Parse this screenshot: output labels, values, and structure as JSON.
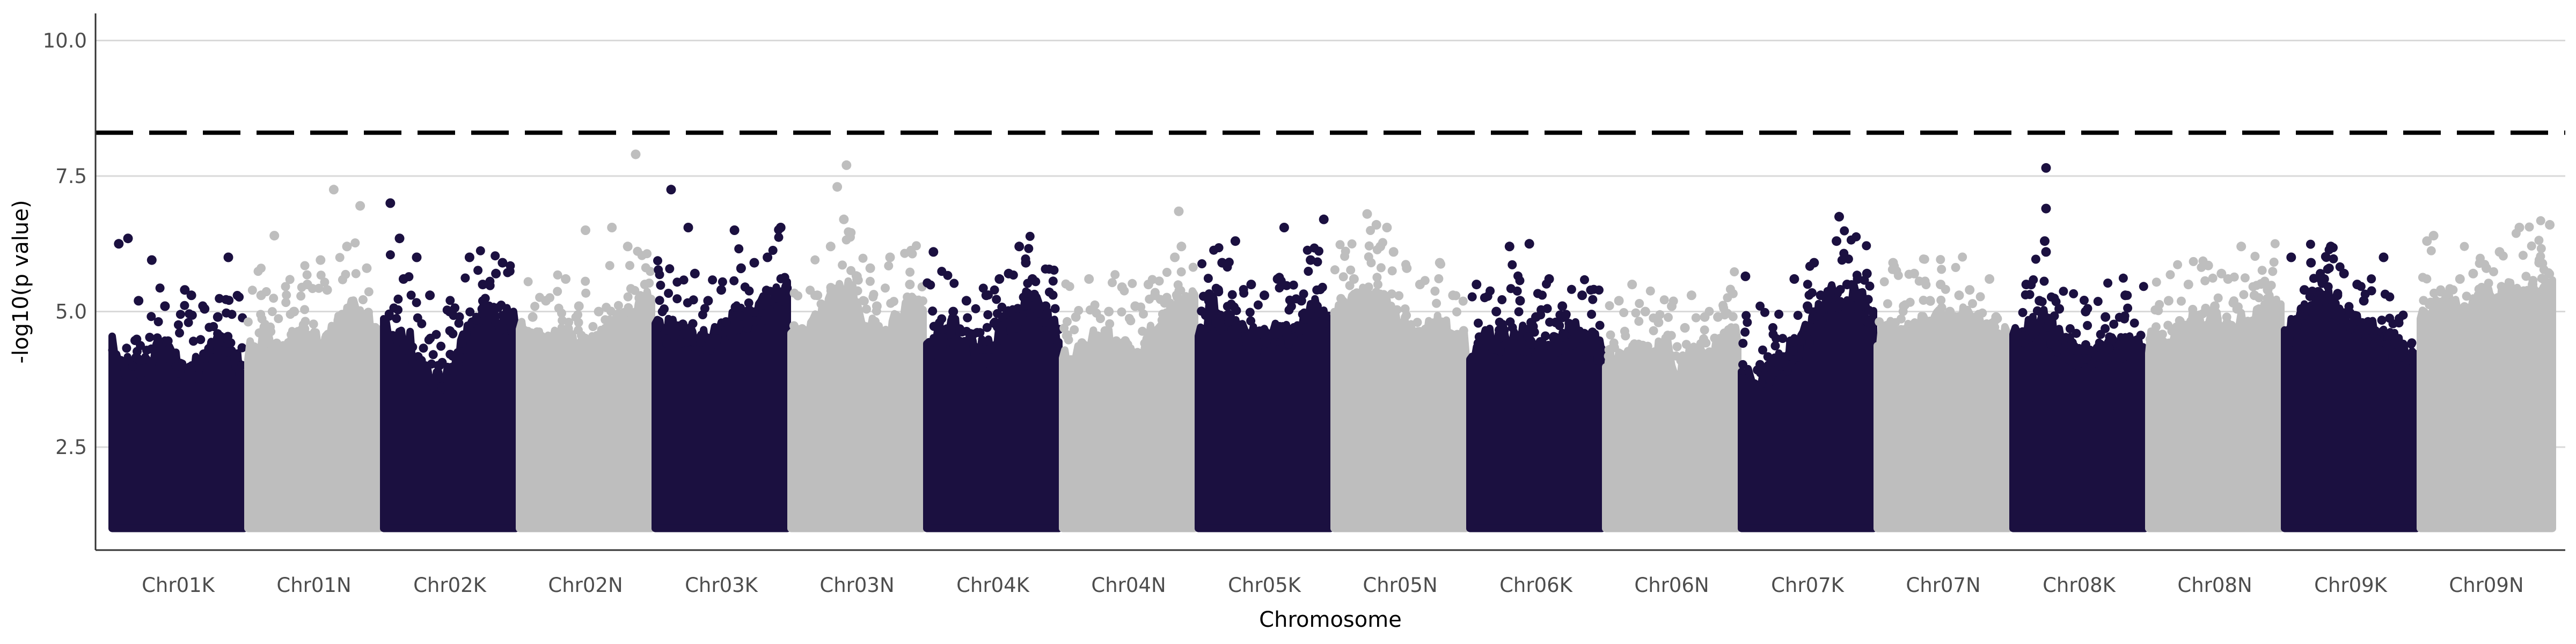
{
  "chart_data": {
    "type": "scatter",
    "subtype": "manhattan",
    "title": "",
    "xlabel": "Chromosome",
    "ylabel": "-log10(p value)",
    "ylim": [
      0.6,
      10.5
    ],
    "y_ticks": [
      2.5,
      5.0,
      7.5,
      10.0
    ],
    "y_tick_labels": [
      "2.5",
      "5.0",
      "7.5",
      "10.0"
    ],
    "grid": "horizontal-major",
    "legend": "none",
    "threshold": 8.3,
    "colors": {
      "odd": "#1b1040",
      "even": "#bebebe",
      "threshold": "#000000"
    },
    "point_floor": 1.0,
    "categories": [
      "Chr01K",
      "Chr01N",
      "Chr02K",
      "Chr02N",
      "Chr03K",
      "Chr03N",
      "Chr04K",
      "Chr04N",
      "Chr05K",
      "Chr05N",
      "Chr06K",
      "Chr06N",
      "Chr07K",
      "Chr07N",
      "Chr08K",
      "Chr08N",
      "Chr09K",
      "Chr09N"
    ],
    "series": [
      {
        "category": "Chr01K",
        "bulk_top": [
          4.3,
          3.9,
          4.0,
          4.4,
          4.1,
          3.8,
          4.0,
          4.5,
          4.2,
          3.9
        ],
        "points": [
          [
            0.05,
            6.25
          ],
          [
            0.12,
            6.35
          ],
          [
            0.3,
            5.95
          ],
          [
            0.55,
            5.4
          ],
          [
            0.7,
            5.05
          ],
          [
            0.88,
            6.0
          ],
          [
            0.4,
            5.1
          ],
          [
            0.6,
            5.3
          ],
          [
            0.2,
            5.2
          ],
          [
            0.8,
            4.9
          ]
        ]
      },
      {
        "category": "Chr01N",
        "bulk_top": [
          4.3,
          4.6,
          4.2,
          4.5,
          4.7,
          4.4,
          4.6,
          5.1,
          4.8,
          4.6
        ],
        "points": [
          [
            0.2,
            6.4
          ],
          [
            0.65,
            7.25
          ],
          [
            0.85,
            6.95
          ],
          [
            0.55,
            5.95
          ],
          [
            0.75,
            6.2
          ],
          [
            0.45,
            5.5
          ],
          [
            0.9,
            5.8
          ],
          [
            0.1,
            5.3
          ],
          [
            0.35,
            5.0
          ],
          [
            0.6,
            5.4
          ]
        ]
      },
      {
        "category": "Chr02K",
        "bulk_top": [
          4.9,
          4.7,
          4.3,
          3.8,
          3.6,
          4.2,
          4.7,
          5.0,
          4.9,
          4.8
        ],
        "points": [
          [
            0.05,
            7.0
          ],
          [
            0.12,
            6.35
          ],
          [
            0.25,
            6.0
          ],
          [
            0.65,
            6.0
          ],
          [
            0.9,
            5.9
          ],
          [
            0.15,
            5.6
          ],
          [
            0.5,
            5.0
          ],
          [
            0.75,
            5.5
          ],
          [
            0.35,
            5.3
          ],
          [
            0.85,
            5.7
          ]
        ]
      },
      {
        "category": "Chr02N",
        "bulk_top": [
          4.6,
          4.4,
          4.3,
          4.5,
          4.2,
          4.4,
          4.6,
          4.8,
          5.0,
          5.2
        ],
        "points": [
          [
            0.5,
            6.5
          ],
          [
            0.88,
            7.9
          ],
          [
            0.82,
            6.2
          ],
          [
            0.35,
            5.6
          ],
          [
            0.7,
            6.55
          ],
          [
            0.2,
            5.2
          ],
          [
            0.95,
            5.5
          ],
          [
            0.6,
            5.0
          ],
          [
            0.1,
            4.9
          ],
          [
            0.45,
            5.1
          ]
        ]
      },
      {
        "category": "Chr03K",
        "bulk_top": [
          4.7,
          4.6,
          4.5,
          4.4,
          4.6,
          4.8,
          4.9,
          5.0,
          5.2,
          5.4
        ],
        "points": [
          [
            0.12,
            7.25
          ],
          [
            0.25,
            6.55
          ],
          [
            0.6,
            6.5
          ],
          [
            0.95,
            6.55
          ],
          [
            0.3,
            5.7
          ],
          [
            0.75,
            5.9
          ],
          [
            0.85,
            6.0
          ],
          [
            0.5,
            5.4
          ],
          [
            0.65,
            5.8
          ],
          [
            0.4,
            5.2
          ]
        ]
      },
      {
        "category": "Chr03N",
        "bulk_top": [
          4.4,
          4.5,
          4.8,
          5.2,
          5.4,
          4.8,
          4.5,
          4.7,
          5.0,
          5.2
        ],
        "points": [
          [
            0.35,
            7.3
          ],
          [
            0.42,
            7.7
          ],
          [
            0.4,
            6.7
          ],
          [
            0.3,
            6.2
          ],
          [
            0.6,
            5.8
          ],
          [
            0.75,
            6.0
          ],
          [
            0.2,
            5.3
          ],
          [
            0.9,
            5.5
          ],
          [
            0.5,
            5.6
          ],
          [
            0.65,
            5.1
          ]
        ]
      },
      {
        "category": "Chr04K",
        "bulk_top": [
          4.3,
          4.5,
          4.6,
          4.4,
          4.2,
          4.7,
          4.9,
          5.2,
          4.8,
          4.6
        ],
        "points": [
          [
            0.05,
            6.1
          ],
          [
            0.3,
            5.2
          ],
          [
            0.55,
            5.6
          ],
          [
            0.7,
            6.2
          ],
          [
            0.75,
            5.9
          ],
          [
            0.8,
            5.6
          ],
          [
            0.2,
            5.0
          ],
          [
            0.45,
            5.3
          ],
          [
            0.62,
            5.7
          ],
          [
            0.9,
            5.1
          ]
        ]
      },
      {
        "category": "Chr04N",
        "bulk_top": [
          4.3,
          4.1,
          4.4,
          4.5,
          4.3,
          4.2,
          4.5,
          4.8,
          5.1,
          5.3
        ],
        "points": [
          [
            0.2,
            5.6
          ],
          [
            0.45,
            5.45
          ],
          [
            0.65,
            5.5
          ],
          [
            0.85,
            6.0
          ],
          [
            0.88,
            6.85
          ],
          [
            0.9,
            6.2
          ],
          [
            0.35,
            5.0
          ],
          [
            0.55,
            5.1
          ],
          [
            0.7,
            5.3
          ],
          [
            0.1,
            4.9
          ]
        ]
      },
      {
        "category": "Chr05K",
        "bulk_top": [
          4.8,
          5.0,
          4.8,
          4.6,
          4.4,
          4.5,
          4.6,
          4.8,
          5.0,
          4.9
        ],
        "points": [
          [
            0.18,
            5.9
          ],
          [
            0.28,
            6.3
          ],
          [
            0.4,
            5.5
          ],
          [
            0.6,
            5.6
          ],
          [
            0.65,
            6.55
          ],
          [
            0.85,
            5.95
          ],
          [
            0.95,
            6.7
          ],
          [
            0.78,
            5.2
          ],
          [
            0.5,
            5.3
          ],
          [
            0.15,
            5.4
          ]
        ]
      },
      {
        "category": "Chr05N",
        "bulk_top": [
          4.9,
          5.0,
          5.4,
          5.2,
          4.8,
          4.6,
          4.5,
          4.7,
          4.5,
          4.4
        ],
        "points": [
          [
            0.25,
            6.8
          ],
          [
            0.32,
            6.6
          ],
          [
            0.4,
            6.55
          ],
          [
            0.35,
            6.2
          ],
          [
            0.45,
            6.1
          ],
          [
            0.55,
            5.8
          ],
          [
            0.8,
            5.9
          ],
          [
            0.15,
            5.6
          ],
          [
            0.65,
            5.5
          ],
          [
            0.9,
            5.3
          ]
        ]
      },
      {
        "category": "Chr06K",
        "bulk_top": [
          4.3,
          4.4,
          4.5,
          4.6,
          4.4,
          4.3,
          4.5,
          4.6,
          4.4,
          4.3
        ],
        "points": [
          [
            0.05,
            5.5
          ],
          [
            0.3,
            6.2
          ],
          [
            0.45,
            6.25
          ],
          [
            0.6,
            5.6
          ],
          [
            0.7,
            5.1
          ],
          [
            0.85,
            5.3
          ],
          [
            0.2,
            5.0
          ],
          [
            0.5,
            4.9
          ],
          [
            0.38,
            5.2
          ],
          [
            0.65,
            4.8
          ]
        ]
      },
      {
        "category": "Chr06N",
        "bulk_top": [
          4.1,
          4.0,
          4.2,
          4.1,
          4.3,
          4.0,
          4.1,
          4.2,
          4.4,
          4.5
        ],
        "points": [
          [
            0.2,
            5.5
          ],
          [
            0.3,
            5.0
          ],
          [
            0.5,
            5.1
          ],
          [
            0.65,
            5.3
          ],
          [
            0.75,
            4.9
          ],
          [
            0.9,
            4.6
          ],
          [
            0.1,
            5.2
          ],
          [
            0.4,
            4.8
          ],
          [
            0.6,
            4.7
          ],
          [
            0.85,
            4.9
          ]
        ]
      },
      {
        "category": "Chr07K",
        "bulk_top": [
          3.7,
          3.8,
          3.9,
          4.1,
          4.4,
          4.8,
          5.2,
          5.4,
          5.2,
          4.9
        ],
        "points": [
          [
            0.03,
            5.65
          ],
          [
            0.4,
            5.6
          ],
          [
            0.55,
            5.9
          ],
          [
            0.72,
            6.3
          ],
          [
            0.74,
            6.75
          ],
          [
            0.8,
            5.5
          ],
          [
            0.95,
            5.7
          ],
          [
            0.6,
            5.3
          ],
          [
            0.88,
            5.6
          ],
          [
            0.5,
            5.1
          ]
        ]
      },
      {
        "category": "Chr07N",
        "bulk_top": [
          4.4,
          4.6,
          4.5,
          4.7,
          4.8,
          4.6,
          4.9,
          4.7,
          4.6,
          4.4
        ],
        "points": [
          [
            0.12,
            5.9
          ],
          [
            0.28,
            5.7
          ],
          [
            0.4,
            5.2
          ],
          [
            0.55,
            5.0
          ],
          [
            0.7,
            5.4
          ],
          [
            0.85,
            5.6
          ],
          [
            0.2,
            5.1
          ],
          [
            0.62,
            5.3
          ],
          [
            0.9,
            4.9
          ],
          [
            0.48,
            5.5
          ]
        ]
      },
      {
        "category": "Chr08K",
        "bulk_top": [
          4.4,
          4.6,
          4.8,
          4.5,
          4.3,
          4.1,
          4.2,
          4.4,
          4.3,
          4.2
        ],
        "points": [
          [
            0.25,
            7.65
          ],
          [
            0.25,
            6.9
          ],
          [
            0.24,
            6.3
          ],
          [
            0.25,
            6.1
          ],
          [
            0.1,
            5.5
          ],
          [
            0.2,
            5.2
          ],
          [
            0.35,
            5.05
          ],
          [
            0.55,
            5.0
          ],
          [
            0.7,
            4.9
          ],
          [
            0.85,
            5.3
          ]
        ]
      },
      {
        "category": "Chr08N",
        "bulk_top": [
          4.4,
          4.5,
          4.6,
          4.8,
          5.0,
          4.8,
          4.7,
          4.9,
          5.1,
          5.0
        ],
        "points": [
          [
            0.3,
            5.5
          ],
          [
            0.45,
            5.85
          ],
          [
            0.6,
            5.6
          ],
          [
            0.7,
            6.2
          ],
          [
            0.8,
            5.3
          ],
          [
            0.9,
            5.4
          ],
          [
            0.15,
            5.2
          ],
          [
            0.5,
            5.1
          ],
          [
            0.55,
            5.7
          ],
          [
            0.95,
            5.0
          ]
        ]
      },
      {
        "category": "Chr09K",
        "bulk_top": [
          4.6,
          4.8,
          5.0,
          5.2,
          5.0,
          4.8,
          4.6,
          4.4,
          4.3,
          4.2
        ],
        "points": [
          [
            0.05,
            6.0
          ],
          [
            0.2,
            5.9
          ],
          [
            0.35,
            6.2
          ],
          [
            0.45,
            5.7
          ],
          [
            0.55,
            5.5
          ],
          [
            0.75,
            6.0
          ],
          [
            0.3,
            5.6
          ],
          [
            0.6,
            5.2
          ],
          [
            0.4,
            5.3
          ],
          [
            0.15,
            5.4
          ]
        ]
      },
      {
        "category": "Chr09N",
        "bulk_top": [
          4.8,
          5.0,
          5.1,
          5.0,
          5.1,
          5.2,
          5.3,
          5.2,
          5.4,
          5.5
        ],
        "points": [
          [
            0.05,
            6.3
          ],
          [
            0.1,
            6.4
          ],
          [
            0.5,
            5.8
          ],
          [
            0.6,
            6.1
          ],
          [
            0.75,
            6.55
          ],
          [
            0.9,
            5.9
          ],
          [
            0.98,
            6.6
          ],
          [
            0.3,
            5.6
          ],
          [
            0.4,
            5.7
          ],
          [
            0.85,
            5.5
          ]
        ]
      }
    ]
  }
}
